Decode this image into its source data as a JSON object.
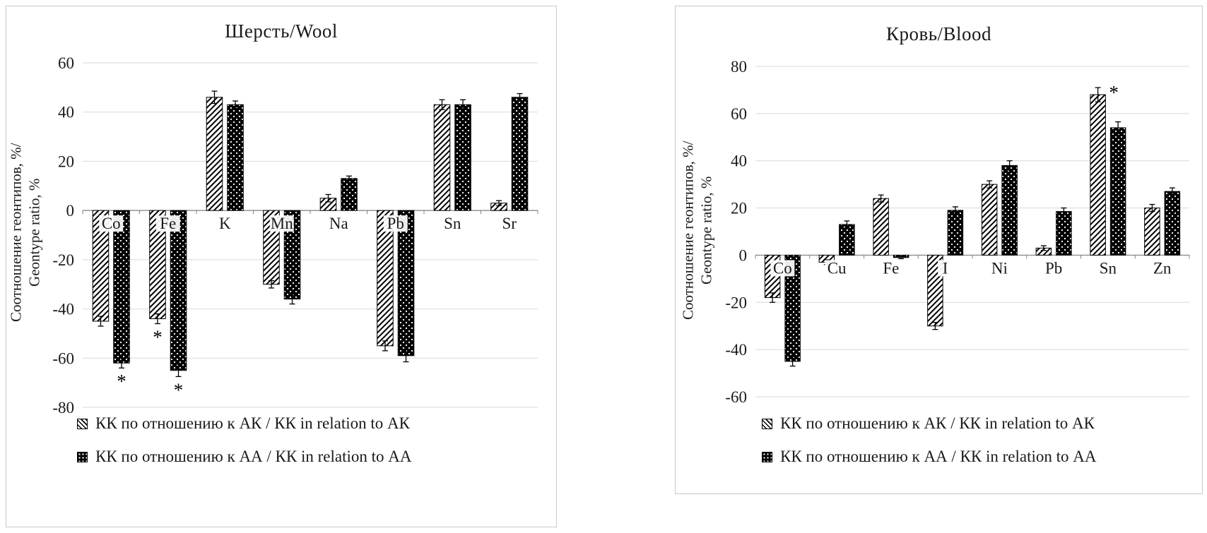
{
  "style": {
    "text": "#1a1a1a",
    "gridline": "#d9d9d9",
    "axis": "#808080",
    "bar_black": "#000000",
    "panel_border": "#c9c9c9"
  },
  "chart_data": [
    {
      "type": "bar",
      "title": "Шерсть/Wool",
      "ylabel_lines": [
        "Соотношение геонтипов, %/",
        "Geontype ratio, %"
      ],
      "ylim": [
        -80,
        60
      ],
      "ytick_step": 20,
      "grid": true,
      "legend_position": "bottom-left",
      "categories": [
        "Co",
        "Fe",
        "K",
        "Mn",
        "Na",
        "Pb",
        "Sn",
        "Sr"
      ],
      "series": [
        {
          "name": "КК по отношению к АК / КК in relation to АК",
          "pattern": "diagonal-hatch",
          "values": [
            -45,
            -44,
            46,
            -30,
            5,
            -55,
            43,
            3
          ],
          "errors": [
            2,
            2,
            2.5,
            1.5,
            1.5,
            2,
            2,
            1
          ],
          "annotations": [
            "",
            "*",
            "",
            "",
            "",
            "",
            "",
            ""
          ]
        },
        {
          "name": "КК по отношению к АА / КК in relation to АА",
          "pattern": "dots",
          "values": [
            -62,
            -65,
            43,
            -36,
            13,
            -59,
            43,
            46
          ],
          "errors": [
            2,
            2.5,
            1.5,
            2,
            1,
            2.5,
            2,
            1.5
          ],
          "annotations": [
            "*",
            "*",
            "",
            "",
            "",
            "",
            "",
            ""
          ]
        }
      ]
    },
    {
      "type": "bar",
      "title": "Кровь/Blood",
      "ylabel_lines": [
        "Соотношение геонтипов, %/",
        "Geontype ratio, %"
      ],
      "ylim": [
        -60,
        80
      ],
      "ytick_step": 20,
      "grid": true,
      "legend_position": "bottom-left",
      "categories": [
        "Co",
        "Cu",
        "Fe",
        "I",
        "Ni",
        "Pb",
        "Sn",
        "Zn"
      ],
      "series": [
        {
          "name": "КК по отношению к АК / КК in relation to АК",
          "pattern": "diagonal-hatch",
          "values": [
            -18,
            -3,
            24,
            -30,
            30,
            3,
            68,
            20
          ],
          "errors": [
            2,
            1,
            1.5,
            1.5,
            1.5,
            1,
            3,
            1.5
          ],
          "annotations": [
            "",
            "",
            "",
            "",
            "",
            "",
            "*",
            ""
          ]
        },
        {
          "name": "КК по отношению к АА / КК in relation to АА",
          "pattern": "dots",
          "values": [
            -45,
            13,
            -1,
            19,
            38,
            18.5,
            54,
            27
          ],
          "errors": [
            2,
            1.5,
            0.5,
            1.5,
            2,
            1.5,
            2.5,
            1.5
          ],
          "annotations": [
            "",
            "",
            "",
            "",
            "",
            "",
            "",
            ""
          ]
        }
      ]
    }
  ]
}
